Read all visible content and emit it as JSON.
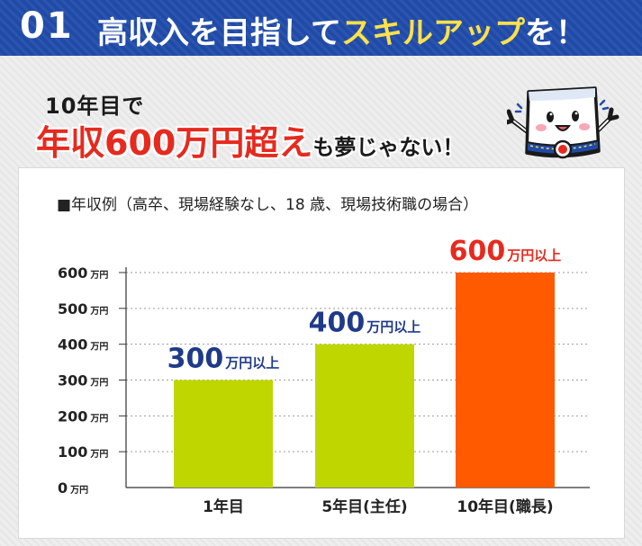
{
  "banner": {
    "number": "01",
    "title_plain": "高収入を目指して",
    "title_highlight": "スキルアップ",
    "title_tail": "を！"
  },
  "headline": {
    "line1": "10年目で",
    "line2_emphasis": "年収600万円超え",
    "line2_tail": "も夢じゃない！"
  },
  "colors": {
    "banner_blue": "#1f4aa8",
    "highlight_yellow": "#ffe14a",
    "emphasis_red": "#e62a1e",
    "bar_green": "#bfd600",
    "bar_orange": "#ff5a00",
    "label_navy": "#1f3a8a"
  },
  "mascot": {
    "icon": "smiling-mascot-character-icon"
  },
  "chart_data": {
    "type": "bar",
    "title": "■年収例（高卒、現場経験なし、18 歳、現場技術職の場合）",
    "categories": [
      "1年目",
      "5年目(主任)",
      "10年目(職長)"
    ],
    "values": [
      300,
      400,
      600
    ],
    "value_labels": [
      {
        "num": "300",
        "unit": "万円以上"
      },
      {
        "num": "400",
        "unit": "万円以上"
      },
      {
        "num": "600",
        "unit": "万円以上"
      }
    ],
    "bar_colors": [
      "#bfd600",
      "#bfd600",
      "#ff5a00"
    ],
    "label_colors": [
      "#1f3a8a",
      "#1f3a8a",
      "#e62a1e"
    ],
    "ylim": [
      0,
      600
    ],
    "y_ticks": [
      0,
      100,
      200,
      300,
      400,
      500,
      600
    ],
    "y_unit": "万円",
    "grid": "dotted horizontal",
    "xlabel": "",
    "ylabel": ""
  }
}
